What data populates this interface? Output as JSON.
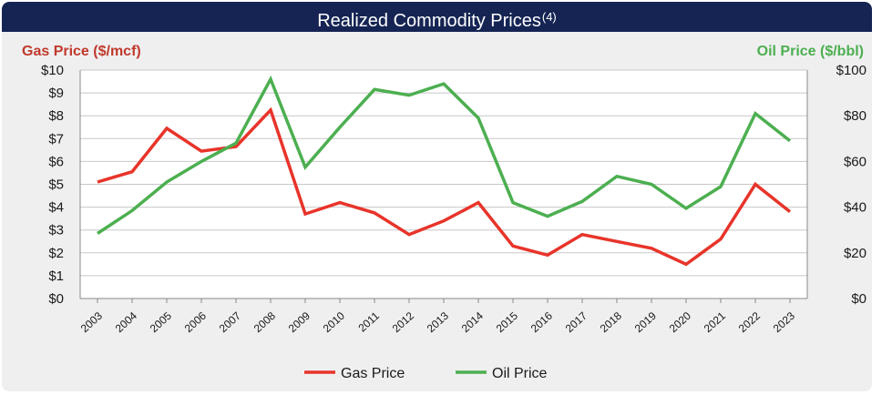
{
  "title": "Realized Commodity Prices",
  "title_footnote": "(4)",
  "colors": {
    "gas": "#e8342a",
    "oil": "#4caf50",
    "title_bg": "#152453",
    "gas_title": "#c0392b",
    "oil_title": "#4caf50"
  },
  "chart_data": {
    "type": "line",
    "title": "Realized Commodity Prices",
    "x": [
      "2003",
      "2004",
      "2005",
      "2006",
      "2007",
      "2008",
      "2009",
      "2010",
      "2011",
      "2012",
      "2013",
      "2014",
      "2015",
      "2016",
      "2017",
      "2018",
      "2019",
      "2020",
      "2021",
      "2022",
      "2023"
    ],
    "ylabel_left": "Gas Price ($/mcf)",
    "ylabel_right": "Oil Price ($/bbl)",
    "ylim_left": [
      0,
      10
    ],
    "ylim_right": [
      0,
      100
    ],
    "yticks_left": [
      "$0",
      "$1",
      "$2",
      "$3",
      "$4",
      "$5",
      "$6",
      "$7",
      "$8",
      "$9",
      "$10"
    ],
    "yticks_right": [
      "$0",
      "$20",
      "$40",
      "$60",
      "$80",
      "$100"
    ],
    "grid": true,
    "legend": "bottom-center",
    "series": [
      {
        "name": "Gas Price",
        "axis": "left",
        "values": [
          5.1,
          5.55,
          7.45,
          6.45,
          6.65,
          8.25,
          3.7,
          4.2,
          3.75,
          2.8,
          3.4,
          4.2,
          2.3,
          1.9,
          2.8,
          2.5,
          2.2,
          1.5,
          2.6,
          5.0,
          3.8
        ]
      },
      {
        "name": "Oil Price",
        "axis": "right",
        "values": [
          28.5,
          38.5,
          51,
          60,
          68,
          96,
          57.5,
          75,
          91.5,
          89,
          94,
          79,
          42,
          36,
          42.5,
          53.5,
          50,
          39.5,
          49,
          81,
          69
        ]
      }
    ]
  }
}
